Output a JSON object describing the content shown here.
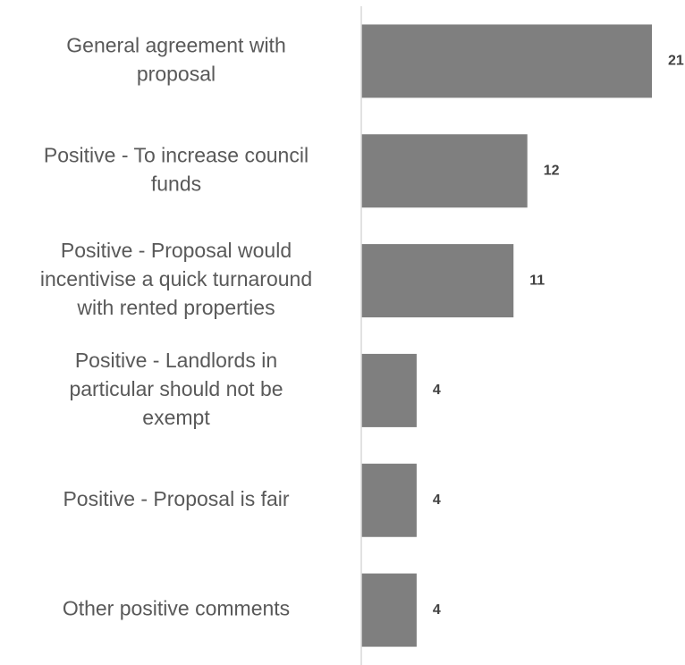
{
  "chart_data": {
    "type": "bar",
    "orientation": "horizontal",
    "title": "",
    "xlabel": "",
    "ylabel": "",
    "categories": [
      [
        "General agreement with",
        "proposal"
      ],
      [
        "Positive - To increase council",
        "funds"
      ],
      [
        "Positive - Proposal would",
        "incentivise a quick turnaround",
        "with rented properties"
      ],
      [
        "Positive - Landlords in",
        "particular should not be",
        "exempt"
      ],
      [
        "Positive - Proposal is fair"
      ],
      [
        "Other positive comments"
      ]
    ],
    "values": [
      21,
      12,
      11,
      4,
      4,
      4
    ],
    "xlim": [
      0,
      21
    ],
    "grid": false,
    "legend": "none",
    "bar_color": "#7f7f7f",
    "axis_color": "#d9d9d9",
    "label_color": "#595959",
    "value_label_color": "#404040"
  }
}
